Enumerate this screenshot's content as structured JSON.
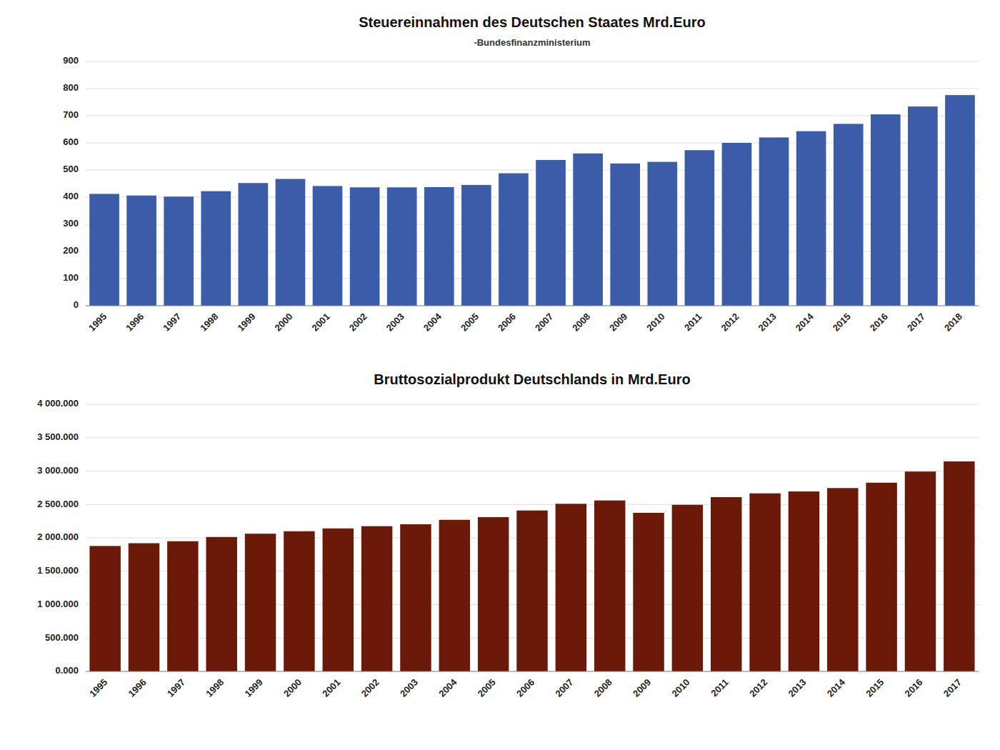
{
  "chart_data": [
    {
      "type": "bar",
      "title": "Steuereinnahmen des Deutschen Staates Mrd.Euro",
      "subtitle": "-Bundesfinanzministerium",
      "categories": [
        "1995",
        "1996",
        "1997",
        "1998",
        "1999",
        "2000",
        "2001",
        "2002",
        "2003",
        "2004",
        "2005",
        "2006",
        "2007",
        "2008",
        "2009",
        "2010",
        "2011",
        "2012",
        "2013",
        "2014",
        "2015",
        "2016",
        "2017",
        "2018"
      ],
      "values": [
        412,
        406,
        402,
        422,
        452,
        467,
        441,
        436,
        436,
        437,
        445,
        488,
        537,
        561,
        524,
        530,
        573,
        600,
        620,
        643,
        670,
        705,
        734,
        776
      ],
      "color": "#3B5CA8",
      "ylim": [
        0,
        900
      ],
      "yticks": [
        0,
        100,
        200,
        300,
        400,
        500,
        600,
        700,
        800,
        900
      ],
      "grid": true
    },
    {
      "type": "bar",
      "title": "Bruttosozialprodukt Deutschlands in Mrd.Euro",
      "categories": [
        "1995",
        "1996",
        "1997",
        "1998",
        "1999",
        "2000",
        "2001",
        "2002",
        "2003",
        "2004",
        "2005",
        "2006",
        "2007",
        "2008",
        "2009",
        "2010",
        "2011",
        "2012",
        "2013",
        "2014",
        "2015",
        "2016",
        "2017"
      ],
      "values": [
        1878.4,
        1919.7,
        1949.5,
        2013.0,
        2062.5,
        2099.2,
        2141.3,
        2175.0,
        2204.0,
        2270.0,
        2310.0,
        2410.0,
        2510.0,
        2560.0,
        2375.0,
        2495.0,
        2609.9,
        2666.4,
        2694.5,
        2745.6,
        2826.2,
        2992.7,
        3144.2
      ],
      "color": "#6B1A0A",
      "ylim": [
        0,
        4000
      ],
      "yticks": [
        {
          "value": 0,
          "label": "0.000"
        },
        {
          "value": 500,
          "label": "500.000"
        },
        {
          "value": 1000,
          "label": "1 000.000"
        },
        {
          "value": 1500,
          "label": "1 500.000"
        },
        {
          "value": 2000,
          "label": "2 000.000"
        },
        {
          "value": 2500,
          "label": "2 500.000"
        },
        {
          "value": 3000,
          "label": "3 000.000"
        },
        {
          "value": 3500,
          "label": "3 500.000"
        },
        {
          "value": 4000,
          "label": "4 000.000"
        }
      ],
      "grid": true
    }
  ]
}
